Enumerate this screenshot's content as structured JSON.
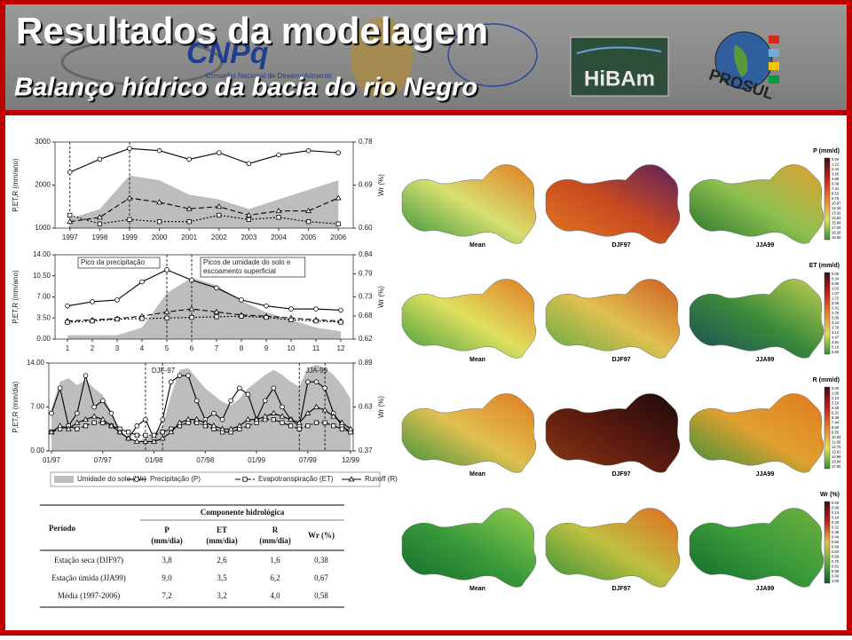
{
  "header": {
    "title": "Resultados da modelagem",
    "subtitle": "Balanço hídrico da bacia do rio Negro",
    "logos": {
      "cnpq": "CNPq",
      "cnpq_caption": "Conselho Nacional de Desenvolvimento",
      "hibam": "HiBAm",
      "prosul": "PROSUL"
    }
  },
  "chart_data": [
    {
      "type": "line",
      "categories": [
        "1997",
        "1998",
        "1999",
        "2000",
        "2001",
        "2002",
        "2003",
        "2004",
        "2005",
        "2006"
      ],
      "ylabel": "P,ET,R (mm/ano)",
      "y2label": "Wr (%)",
      "ylim": [
        1000,
        3000
      ],
      "yticks": [
        1000,
        2000,
        3000
      ],
      "y2lim": [
        0.6,
        0.78
      ],
      "y2ticks": [
        {
          "value": 0.6,
          "label": "0.60"
        },
        {
          "value": 0.69,
          "label": "0.69"
        },
        {
          "value": 0.78,
          "label": "0.78"
        }
      ],
      "series": [
        {
          "style": "area",
          "axis": "y2",
          "color": "#bdbdbd",
          "values": [
            0.62,
            0.64,
            0.71,
            0.7,
            0.67,
            0.66,
            0.64,
            0.66,
            0.68,
            0.7
          ]
        },
        {
          "style": "solid",
          "marker": "circle",
          "color": "#000000",
          "values": [
            2300,
            2600,
            2850,
            2800,
            2600,
            2750,
            2500,
            2700,
            2800,
            2750
          ]
        },
        {
          "style": "dashed",
          "marker": "triangle",
          "color": "#000000",
          "values": [
            1150,
            1250,
            1700,
            1600,
            1450,
            1500,
            1300,
            1400,
            1400,
            1700
          ]
        },
        {
          "style": "dotted",
          "marker": "square",
          "color": "#000000",
          "values": [
            1300,
            1100,
            1200,
            1150,
            1150,
            1300,
            1200,
            1250,
            1150,
            1100
          ]
        }
      ]
    },
    {
      "type": "line",
      "categories": [
        "1",
        "2",
        "3",
        "4",
        "5",
        "6",
        "7",
        "8",
        "9",
        "10",
        "11",
        "12"
      ],
      "ylabel": "P,ET,R (mm/ano)",
      "y2label": "Wr (%)",
      "ylim": [
        0,
        14
      ],
      "yticks": [
        {
          "value": 0,
          "label": "0.00"
        },
        {
          "value": 3.5,
          "label": "3.50"
        },
        {
          "value": 7,
          "label": "7.00"
        },
        {
          "value": 10.5,
          "label": "10.50"
        },
        {
          "value": 14,
          "label": "14.00"
        }
      ],
      "y2lim": [
        0.62,
        0.84
      ],
      "y2ticks": [
        0.62,
        0.68,
        0.73,
        0.79,
        0.84
      ],
      "annotations": [
        [
          "Pico da precipitação"
        ],
        [
          "Picos de umidade do solo e",
          "escoamento superficial"
        ]
      ],
      "series": [
        {
          "style": "area",
          "axis": "y2",
          "color": "#bdbdbd",
          "values": [
            0.63,
            0.63,
            0.63,
            0.65,
            0.74,
            0.78,
            0.76,
            0.72,
            0.69,
            0.67,
            0.65,
            0.64
          ]
        },
        {
          "style": "solid",
          "marker": "circle",
          "color": "#000000",
          "values": [
            5.5,
            6.2,
            6.5,
            9.5,
            11.5,
            9.8,
            8.5,
            6.5,
            5.5,
            5,
            5,
            4.8
          ]
        },
        {
          "style": "dashed",
          "marker": "triangle",
          "color": "#000000",
          "values": [
            3,
            3.2,
            3.4,
            3.8,
            4.5,
            5,
            4.5,
            4,
            3.8,
            3.5,
            3.2,
            3
          ]
        },
        {
          "style": "dotted",
          "marker": "square",
          "color": "#000000",
          "values": [
            2.8,
            3,
            3.3,
            3.4,
            3.5,
            3.6,
            3.7,
            3.8,
            3.6,
            3.2,
            3,
            2.8
          ]
        }
      ]
    },
    {
      "type": "line",
      "categories": [
        "01/97",
        null,
        null,
        null,
        null,
        null,
        "07/97",
        null,
        null,
        null,
        null,
        null,
        "01/98",
        null,
        null,
        null,
        null,
        null,
        "07/98",
        null,
        null,
        null,
        null,
        null,
        "01/99",
        null,
        null,
        null,
        null,
        null,
        "07/99",
        null,
        null,
        null,
        null,
        "12/99"
      ],
      "ylabel": "P,ET,R (mm/dia)",
      "y2label": "Wr (%)",
      "ylim": [
        0,
        14
      ],
      "yticks": [
        {
          "value": 0,
          "label": "0.00"
        },
        {
          "value": 7,
          "label": "7.00"
        },
        {
          "value": 14,
          "label": "14.00"
        }
      ],
      "y2lim": [
        0.37,
        0.89
      ],
      "y2ticks": [
        0.37,
        0.63,
        0.89
      ],
      "annotations": [
        [
          "DJF-97"
        ],
        [
          "JJA-99"
        ]
      ],
      "series": [
        {
          "name": "Umidade do solo (Wr)",
          "style": "area",
          "axis": "y2",
          "color": "#bdbdbd",
          "values": [
            0.62,
            0.78,
            0.8,
            0.76,
            0.79,
            0.74,
            0.7,
            0.6,
            0.5,
            0.44,
            0.42,
            0.45,
            0.47,
            0.52,
            0.7,
            0.85,
            0.86,
            0.8,
            0.74,
            0.7,
            0.66,
            0.64,
            0.68,
            0.74,
            0.78,
            0.82,
            0.85,
            0.82,
            0.78,
            0.75,
            0.86,
            0.88,
            0.86,
            0.82,
            0.76,
            0.68
          ]
        },
        {
          "name": "Precipitação (P)",
          "style": "solid",
          "marker": "circle",
          "color": "#000000",
          "values": [
            6,
            10,
            4,
            6,
            12,
            7,
            8,
            6,
            3,
            2,
            4,
            5,
            2,
            5,
            11,
            12,
            12,
            8,
            5,
            6,
            5,
            8,
            10,
            9,
            5,
            8,
            10,
            7,
            5,
            4,
            11,
            11,
            10,
            6,
            4,
            3
          ]
        },
        {
          "name": "Evapotranspiração (ET)",
          "style": "dashdot",
          "marker": "square",
          "color": "#000000",
          "values": [
            3,
            3.5,
            4,
            3.5,
            4,
            4.5,
            4.5,
            4,
            3.5,
            3,
            2.5,
            2.5,
            2.5,
            3,
            3.5,
            4,
            4.5,
            4.5,
            4,
            3.5,
            3,
            3,
            3.5,
            4,
            4.5,
            5,
            5,
            4.5,
            4,
            3.5,
            4,
            4.5,
            4.5,
            4,
            3.5,
            3
          ]
        },
        {
          "name": "Runoff (R)",
          "style": "solid",
          "marker": "triangle",
          "color": "#000000",
          "values": [
            3,
            4,
            3.5,
            4.5,
            5,
            5.5,
            5,
            4,
            3,
            2,
            1.5,
            1.5,
            1.5,
            2,
            3,
            4.5,
            5,
            5,
            4.5,
            4,
            3.5,
            3.5,
            4,
            5,
            5,
            5.5,
            6,
            5.5,
            5,
            4.5,
            6,
            7,
            6.5,
            5.5,
            4.5,
            3.5
          ]
        }
      ]
    }
  ],
  "table": {
    "period": "Período",
    "group": "Componente hidrológica",
    "columns": [
      {
        "name": "P",
        "unit": "(mm/dia)"
      },
      {
        "name": "ET",
        "unit": "(mm/dia)"
      },
      {
        "name": "R",
        "unit": "(mm/dia)"
      },
      {
        "name": "Wr (%)"
      }
    ],
    "rows": [
      [
        "Estação seca (DJF97)",
        "3,8",
        "2,6",
        "1,6",
        "0,38"
      ],
      [
        "Estação úmida (JJA99)",
        "9,0",
        "3,5",
        "6,2",
        "0,67"
      ],
      [
        "Média (1997-2006)",
        "7,2",
        "3,2",
        "4,0",
        "0,58"
      ]
    ]
  },
  "maps": [
    {
      "legend_title": "P (mm/d)",
      "panels": [
        "Mean",
        "DJF97",
        "JJA99"
      ],
      "legend_labels": [
        "0.00",
        "1.22",
        "2.44",
        "3.65",
        "4.88",
        "6.09",
        "7.31",
        "8.53",
        "9.75",
        "10.97",
        "12.19",
        "13.41",
        "14.63",
        "15.84",
        "17.06",
        "18.28",
        "19.50"
      ]
    },
    {
      "legend_title": "ET (mm/d)",
      "panels": [
        "Mean",
        "DJF97",
        "JJA99"
      ],
      "legend_labels": [
        "0.00",
        "0.34",
        "0.69",
        "1.03",
        "1.37",
        "1.72",
        "2.06",
        "2.41",
        "2.75",
        "3.09",
        "3.44",
        "3.78",
        "4.12",
        "4.47",
        "4.81",
        "5.16",
        "5.50"
      ]
    },
    {
      "legend_title": "R (mm/d)",
      "panels": [
        "Mean",
        "DJF97",
        "JJA99"
      ],
      "legend_labels": [
        "0.00",
        "1.06",
        "2.13",
        "3.19",
        "4.25",
        "5.31",
        "6.38",
        "7.44",
        "8.50",
        "9.56",
        "10.63",
        "11.69",
        "12.75",
        "13.81",
        "14.88",
        "15.94",
        "17.00"
      ]
    },
    {
      "legend_title": "Wr (%)",
      "panels": [
        "Mean",
        "DJF97",
        "JJA99"
      ],
      "legend_labels": [
        "0.00",
        "0.06",
        "0.13",
        "0.19",
        "0.25",
        "0.31",
        "0.38",
        "0.44",
        "0.50",
        "0.56",
        "0.63",
        "0.69",
        "0.75",
        "0.81",
        "0.88",
        "0.94",
        "1.00"
      ]
    }
  ]
}
